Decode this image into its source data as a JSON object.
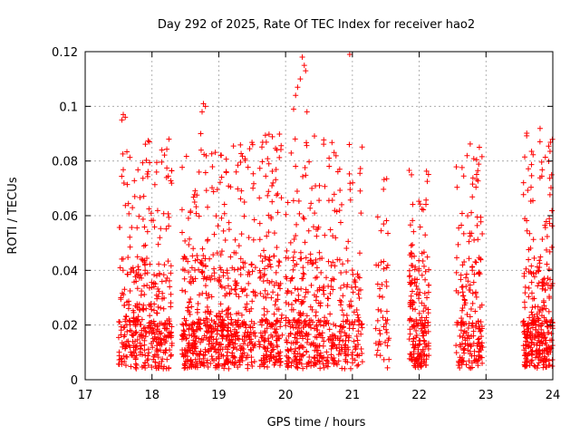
{
  "chart_data": {
    "type": "scatter",
    "title": "Day 292 of 2025, Rate Of TEC Index for receiver hao2",
    "xlabel": "GPS time / hours",
    "ylabel": "ROTI / TECUs",
    "xlim": [
      17,
      24
    ],
    "ylim": [
      0,
      0.12
    ],
    "x_ticks": [
      17,
      18,
      19,
      20,
      21,
      22,
      23,
      24
    ],
    "y_ticks": [
      0,
      0.02,
      0.04,
      0.06,
      0.08,
      0.1,
      0.12
    ],
    "x_tick_labels": [
      "17",
      "18",
      "19",
      "20",
      "21",
      "22",
      "23",
      "24"
    ],
    "y_tick_labels": [
      "0",
      "0.02",
      "0.04",
      "0.06",
      "0.08",
      "0.1",
      "0.12"
    ],
    "grid": true,
    "marker": "plus",
    "color": "#ff0000",
    "clusters": [
      {
        "x_start": 17.5,
        "x_end": 18.3,
        "y_max": 0.089,
        "count": 420
      },
      {
        "x_start": 18.45,
        "x_end": 19.15,
        "y_max": 0.084,
        "count": 420
      },
      {
        "x_start": 19.15,
        "x_end": 19.55,
        "y_max": 0.088,
        "count": 200
      },
      {
        "x_start": 19.6,
        "x_end": 19.95,
        "y_max": 0.09,
        "count": 200
      },
      {
        "x_start": 20.0,
        "x_end": 20.5,
        "y_max": 0.09,
        "count": 260
      },
      {
        "x_start": 20.5,
        "x_end": 21.15,
        "y_max": 0.088,
        "count": 260
      },
      {
        "x_start": 21.35,
        "x_end": 21.55,
        "y_max": 0.078,
        "count": 50
      },
      {
        "x_start": 21.85,
        "x_end": 22.15,
        "y_max": 0.077,
        "count": 200
      },
      {
        "x_start": 22.55,
        "x_end": 22.95,
        "y_max": 0.087,
        "count": 200
      },
      {
        "x_start": 23.55,
        "x_end": 24.0,
        "y_max": 0.092,
        "count": 320
      }
    ],
    "outliers": [
      {
        "x": 17.57,
        "y": 0.097
      },
      {
        "x": 17.55,
        "y": 0.095
      },
      {
        "x": 17.6,
        "y": 0.096
      },
      {
        "x": 18.77,
        "y": 0.101
      },
      {
        "x": 18.8,
        "y": 0.1
      },
      {
        "x": 18.75,
        "y": 0.098
      },
      {
        "x": 18.73,
        "y": 0.09
      },
      {
        "x": 20.25,
        "y": 0.118
      },
      {
        "x": 20.28,
        "y": 0.115
      },
      {
        "x": 20.3,
        "y": 0.113
      },
      {
        "x": 20.32,
        "y": 0.098
      },
      {
        "x": 20.22,
        "y": 0.11
      },
      {
        "x": 20.18,
        "y": 0.107
      },
      {
        "x": 20.15,
        "y": 0.104
      },
      {
        "x": 20.12,
        "y": 0.099
      },
      {
        "x": 20.96,
        "y": 0.119
      }
    ]
  }
}
